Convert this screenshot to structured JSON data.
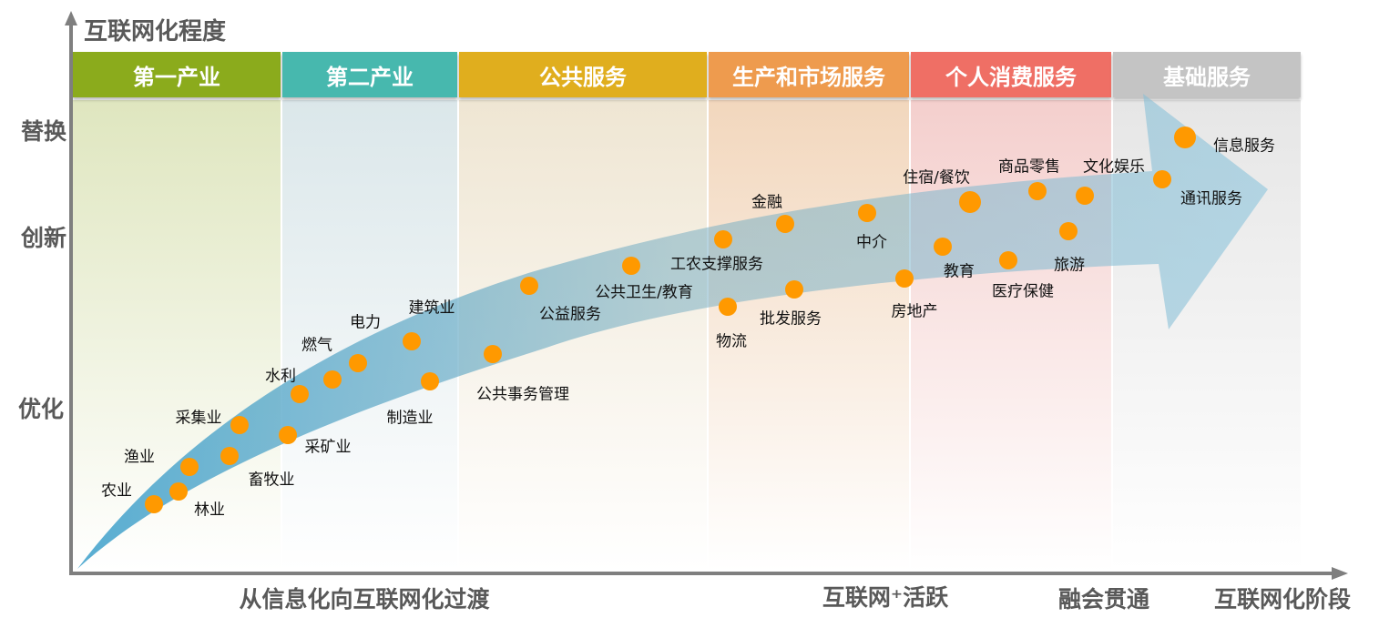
{
  "y_axis_title": "互联网化程度",
  "x_axis_title": "互联网化阶段",
  "y_levels": [
    "替换",
    "创新",
    "优化"
  ],
  "x_stages": [
    "从信息化向互联网化过渡",
    "互联网⁺活跃",
    "融会贯通"
  ],
  "columns": [
    {
      "label": "第一产业",
      "color": "#8bab1c"
    },
    {
      "label": "第二产业",
      "color": "#47b8ae"
    },
    {
      "label": "公共服务",
      "color": "#e0ae1e"
    },
    {
      "label": "生产和市场服务",
      "color": "#ee9b4e"
    },
    {
      "label": "个人消费服务",
      "color": "#ef6f65"
    },
    {
      "label": "基础服务",
      "color": "#c4c4c4"
    }
  ],
  "points": [
    "农业",
    "林业",
    "渔业",
    "畜牧业",
    "采集业",
    "采矿业",
    "水利",
    "燃气",
    "电力",
    "建筑业",
    "制造业",
    "公共事务管理",
    "公益服务",
    "公共卫生/教育",
    "工农支撑服务",
    "金融",
    "物流",
    "批发服务",
    "中介",
    "房地产",
    "住宿/餐饮",
    "教育",
    "商品零售",
    "文化娱乐",
    "医疗保健",
    "旅游",
    "信息服务",
    "通讯服务"
  ],
  "colors": {
    "dot": "#ff9900",
    "axis": "#7f7f7f",
    "arrow": "#4fa9d0"
  }
}
